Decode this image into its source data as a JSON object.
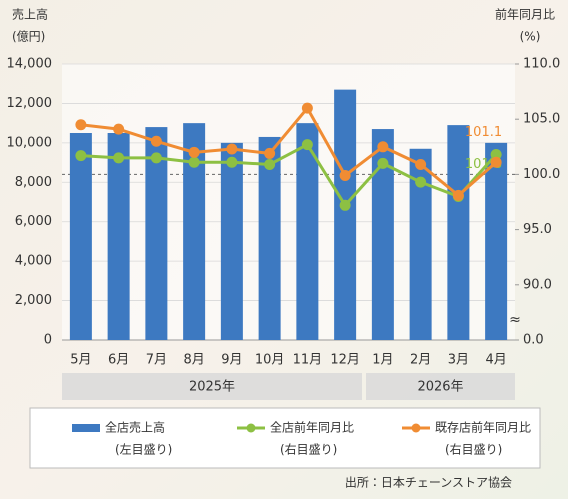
{
  "chart_data": {
    "type": "bar-line",
    "y_title": [
      "売上高",
      "(億円)"
    ],
    "y2_title": [
      "前年同月比",
      "(%)"
    ],
    "category_groups": [
      {
        "label": "2025年",
        "categories": [
          "5月",
          "6月",
          "7月",
          "8月",
          "9月",
          "10月",
          "11月",
          "12月"
        ]
      },
      {
        "label": "2026年",
        "categories": [
          "1月",
          "2月",
          "3月",
          "4月"
        ]
      }
    ],
    "series": [
      {
        "name": "全店売上高",
        "note": "(左目盛り)",
        "type": "bar",
        "axis": "y",
        "color": "#3d79c1",
        "values": [
          10500,
          10500,
          10800,
          11000,
          10000,
          10300,
          11000,
          12700,
          10700,
          9700,
          10900,
          10000
        ]
      },
      {
        "name": "全店前年同月比",
        "note": "(右目盛り)",
        "type": "line",
        "axis": "y2",
        "color": "#8dc043",
        "label_last": true,
        "values": [
          101.7,
          101.5,
          101.5,
          101.1,
          101.1,
          100.9,
          102.7,
          97.2,
          101.0,
          99.3,
          98.0,
          101.8
        ]
      },
      {
        "name": "既存店前年同月比",
        "note": "(右目盛り)",
        "type": "line",
        "axis": "y2",
        "color": "#f08c33",
        "label_last": true,
        "values": [
          104.5,
          104.1,
          103.0,
          102.0,
          102.3,
          101.9,
          106.0,
          99.9,
          102.5,
          100.9,
          98.1,
          101.1
        ]
      }
    ],
    "ylim": [
      0,
      14000
    ],
    "yticks": [
      0,
      {
        "value": 2000,
        "label": "2,000"
      },
      {
        "value": 4000,
        "label": "4,000"
      },
      {
        "value": 6000,
        "label": "6,000"
      },
      {
        "value": 8000,
        "label": "8,000"
      },
      {
        "value": 10000,
        "label": "10,000"
      },
      {
        "value": 12000,
        "label": "12,000"
      },
      {
        "value": 14000,
        "label": "14,000"
      }
    ],
    "y2lim": [
      0,
      110
    ],
    "y2ticks": [
      {
        "value": 0,
        "label": "0.0"
      },
      {
        "value": 90,
        "label": "90.0"
      },
      {
        "value": 95,
        "label": "95.0"
      },
      {
        "value": 100,
        "label": "100.0"
      },
      {
        "value": 105,
        "label": "105.0"
      },
      {
        "value": 110,
        "label": "110.0"
      }
    ],
    "y2_axis_break": true,
    "y2_reference": 100,
    "source": "出所：日本チェーンストア協会"
  }
}
